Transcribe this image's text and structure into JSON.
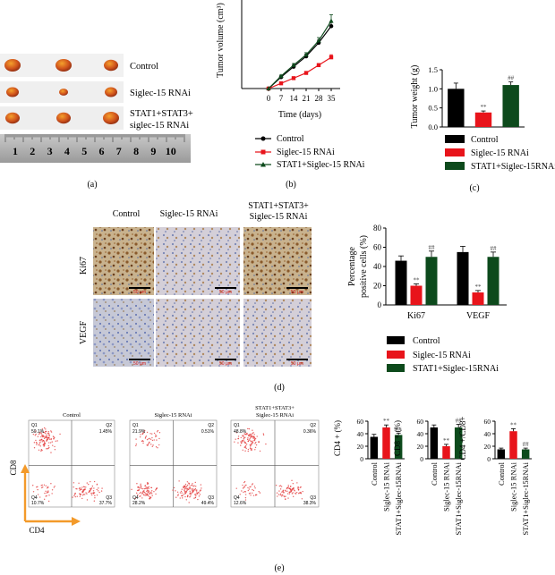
{
  "colors": {
    "control": "#000000",
    "siglec": "#e8141b",
    "stat1": "#0d4a1c",
    "axis_orange": "#f39a2a",
    "dot_red": "#e43c3c",
    "tumor": "#c9531e",
    "scalebar": "#d41515"
  },
  "panel_a": {
    "caption": "(a)",
    "rows": [
      {
        "label": "Control",
        "count": 3
      },
      {
        "label": "Siglec-15 RNAi",
        "count": 3
      },
      {
        "label_line1": "STAT1+STAT3+",
        "label_line2": "siglec-15 RNAi",
        "count": 3
      }
    ],
    "ruler_numbers": [
      "1",
      "2",
      "3",
      "4",
      "5",
      "6",
      "7",
      "8",
      "9",
      "10"
    ]
  },
  "panel_d": {
    "caption": "(d)",
    "col_headers": [
      "Control",
      "Siglec-15 RNAi",
      "STAT1+STAT3+"
    ],
    "col_header_line2": "Siglec-15 RNAi",
    "row_labels": [
      "Ki67",
      "VEGF"
    ],
    "scale_text": "50 μm"
  },
  "panel_e": {
    "caption": "(e)",
    "plots": [
      {
        "title": "Control",
        "q1": "50.1%",
        "q2": "1.45%",
        "q4": "10.7%",
        "q3": "37.7%"
      },
      {
        "title": "Siglec-15 RNAi",
        "q1": "21.9%",
        "q2": "0.51%",
        "q4": "28.2%",
        "q3": "49.4%"
      },
      {
        "title": "STAT1+STAT3+",
        "title2": "Siglec-15 RNAi",
        "q1": "48.8%",
        "q2": "0.36%",
        "q4": "12.6%",
        "q3": "38.3%"
      }
    ],
    "quad_labels": [
      "Q1",
      "Q2",
      "Q3",
      "Q4"
    ],
    "axis_x": "CD4",
    "axis_y": "CD8"
  },
  "chart_data": [
    {
      "id": "b",
      "caption": "(b)",
      "type": "line",
      "xlabel": "Time (days)",
      "ylabel": "Tumor volume (cm³)",
      "x": [
        0,
        7,
        14,
        21,
        28,
        35
      ],
      "xticks": [
        "0",
        "7",
        "14",
        "21",
        "28",
        "35"
      ],
      "yticks": [
        "0.0",
        "0.5",
        "1.0"
      ],
      "ylim": [
        0,
        1.6
      ],
      "series": [
        {
          "name": "Control",
          "values": [
            0.0,
            0.22,
            0.42,
            0.62,
            0.88,
            1.2
          ],
          "err": [
            0,
            0.02,
            0.03,
            0.04,
            0.05,
            0.07
          ],
          "color": "#000000",
          "marker": "circle"
        },
        {
          "name": "Siglec-15 RNAi",
          "values": [
            0.0,
            0.1,
            0.2,
            0.3,
            0.45,
            0.6
          ],
          "err": [
            0,
            0.01,
            0.02,
            0.02,
            0.03,
            0.05
          ],
          "color": "#e8141b",
          "marker": "square"
        },
        {
          "name": "STAT1+Siglec-15 RNAi",
          "values": [
            0.0,
            0.24,
            0.45,
            0.65,
            0.92,
            1.3
          ],
          "err": [
            0,
            0.02,
            0.03,
            0.04,
            0.06,
            0.12
          ],
          "color": "#0d4a1c",
          "marker": "triangle"
        }
      ]
    },
    {
      "id": "c",
      "caption": "(c)",
      "type": "bar",
      "ylabel": "Tumor weight (g)",
      "yticks": [
        "0.0",
        "0.5",
        "1.0",
        "1.5"
      ],
      "ylim": [
        0,
        1.5
      ],
      "categories": [
        "Control",
        "Siglec-15 RNAi",
        "STAT1+Siglec-15RNAi"
      ],
      "values": [
        1.0,
        0.38,
        1.1
      ],
      "err": [
        0.15,
        0.04,
        0.08
      ],
      "marks": [
        "",
        "**",
        "##"
      ],
      "legend": [
        "Control",
        "Siglec-15 RNAi",
        "STAT1+Siglec-15RNAi"
      ]
    },
    {
      "id": "d",
      "type": "bar",
      "ylabel_line1": "Percentage",
      "ylabel_line2": "positive cells (%)",
      "yticks": [
        "0",
        "20",
        "40",
        "60",
        "80"
      ],
      "ylim": [
        0,
        80
      ],
      "categories": [
        "Ki67",
        "VEGF"
      ],
      "series": [
        {
          "name": "Control",
          "values": [
            46,
            55
          ],
          "err": [
            5,
            6
          ],
          "marks": [
            "",
            ""
          ]
        },
        {
          "name": "Siglec-15 RNAi",
          "values": [
            20,
            13
          ],
          "err": [
            2,
            2
          ],
          "marks": [
            "**",
            "**"
          ]
        },
        {
          "name": "STAT1+Siglec-15RNAi",
          "values": [
            50,
            50
          ],
          "err": [
            6,
            5
          ],
          "marks": [
            "##",
            "##"
          ]
        }
      ]
    },
    {
      "id": "e1",
      "type": "bar",
      "ylabel": "CD4 + (%)",
      "yticks": [
        "0",
        "20",
        "40",
        "60"
      ],
      "ylim": [
        0,
        60
      ],
      "categories": [
        "Control",
        "Siglec-15 RNAi",
        "STAT1+Siglec-15RNAi"
      ],
      "values": [
        35,
        50,
        38
      ],
      "err": [
        4,
        4,
        3
      ],
      "marks": [
        "",
        "**",
        "##"
      ]
    },
    {
      "id": "e2",
      "type": "bar",
      "ylabel": "CD8 + (%)",
      "yticks": [
        "0",
        "20",
        "40",
        "60"
      ],
      "ylim": [
        0,
        60
      ],
      "categories": [
        "Control",
        "Siglec-15 RNAi",
        "STAT1+Siglec-15RNAi"
      ],
      "values": [
        50,
        20,
        50
      ],
      "err": [
        4,
        3,
        5
      ],
      "marks": [
        "",
        "**",
        "##"
      ]
    },
    {
      "id": "e3",
      "type": "bar",
      "ylabel": "CD4 +/CD8+",
      "yticks": [
        "0",
        "20",
        "40",
        "60"
      ],
      "ylim": [
        0,
        60
      ],
      "categories": [
        "Control",
        "Siglec-15 RNAi",
        "STAT1+Siglec-15RNAi"
      ],
      "values": [
        15,
        44,
        15
      ],
      "err": [
        2,
        4,
        2
      ],
      "marks": [
        "",
        "**",
        "##"
      ]
    }
  ]
}
